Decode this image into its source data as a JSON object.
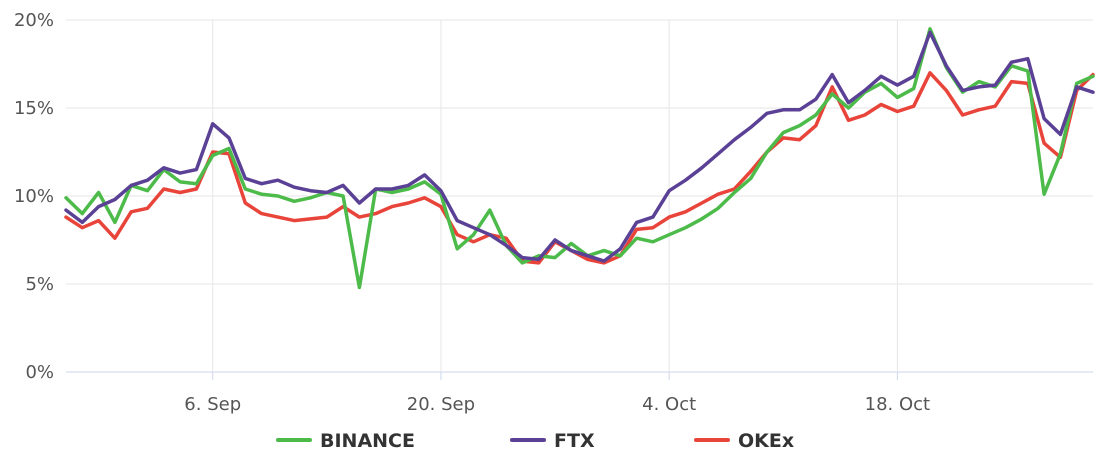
{
  "chart_data": {
    "type": "line",
    "title": "",
    "xlabel": "",
    "ylabel": "",
    "x_range": [
      "2021-08-28",
      "2021-10-30"
    ],
    "ylim": [
      0,
      20
    ],
    "y_ticks": [
      0,
      5,
      10,
      15,
      20
    ],
    "y_tick_labels": [
      "0%",
      "5%",
      "10%",
      "15%",
      "20%"
    ],
    "x_ticks": [
      "2021-09-06",
      "2021-09-20",
      "2021-10-04",
      "2021-10-18"
    ],
    "x_tick_labels": [
      "6. Sep",
      "20. Sep",
      "4. Oct",
      "18. Oct"
    ],
    "grid": {
      "horizontal": true,
      "vertical": true
    },
    "legend_position": "bottom-center",
    "series": [
      {
        "name": "BINANCE",
        "color": "#4cbb4a",
        "points": [
          [
            "2021-08-28",
            9.9
          ],
          [
            "2021-08-29",
            9.0
          ],
          [
            "2021-08-30",
            10.2
          ],
          [
            "2021-08-31",
            8.5
          ],
          [
            "2021-09-01",
            10.6
          ],
          [
            "2021-09-02",
            10.3
          ],
          [
            "2021-09-03",
            11.5
          ],
          [
            "2021-09-04",
            10.8
          ],
          [
            "2021-09-05",
            10.7
          ],
          [
            "2021-09-06",
            12.3
          ],
          [
            "2021-09-07",
            12.7
          ],
          [
            "2021-09-08",
            10.4
          ],
          [
            "2021-09-09",
            10.1
          ],
          [
            "2021-09-10",
            10.0
          ],
          [
            "2021-09-11",
            9.7
          ],
          [
            "2021-09-12",
            9.9
          ],
          [
            "2021-09-13",
            10.2
          ],
          [
            "2021-09-14",
            10.0
          ],
          [
            "2021-09-15",
            4.8
          ],
          [
            "2021-09-16",
            10.4
          ],
          [
            "2021-09-17",
            10.2
          ],
          [
            "2021-09-18",
            10.4
          ],
          [
            "2021-09-19",
            10.8
          ],
          [
            "2021-09-20",
            10.1
          ],
          [
            "2021-09-21",
            7.0
          ],
          [
            "2021-09-22",
            7.8
          ],
          [
            "2021-09-23",
            9.2
          ],
          [
            "2021-09-24",
            7.2
          ],
          [
            "2021-09-25",
            6.2
          ],
          [
            "2021-09-26",
            6.6
          ],
          [
            "2021-09-27",
            6.5
          ],
          [
            "2021-09-28",
            7.3
          ],
          [
            "2021-09-29",
            6.6
          ],
          [
            "2021-09-30",
            6.9
          ],
          [
            "2021-10-01",
            6.6
          ],
          [
            "2021-10-02",
            7.6
          ],
          [
            "2021-10-03",
            7.4
          ],
          [
            "2021-10-04",
            7.8
          ],
          [
            "2021-10-05",
            8.2
          ],
          [
            "2021-10-06",
            8.7
          ],
          [
            "2021-10-07",
            9.3
          ],
          [
            "2021-10-08",
            10.2
          ],
          [
            "2021-10-09",
            11.0
          ],
          [
            "2021-10-10",
            12.5
          ],
          [
            "2021-10-11",
            13.6
          ],
          [
            "2021-10-12",
            14.0
          ],
          [
            "2021-10-13",
            14.6
          ],
          [
            "2021-10-14",
            15.8
          ],
          [
            "2021-10-15",
            15.0
          ],
          [
            "2021-10-16",
            15.9
          ],
          [
            "2021-10-17",
            16.4
          ],
          [
            "2021-10-18",
            15.6
          ],
          [
            "2021-10-19",
            16.1
          ],
          [
            "2021-10-20",
            19.5
          ],
          [
            "2021-10-21",
            17.3
          ],
          [
            "2021-10-22",
            15.9
          ],
          [
            "2021-10-23",
            16.5
          ],
          [
            "2021-10-24",
            16.2
          ],
          [
            "2021-10-25",
            17.4
          ],
          [
            "2021-10-26",
            17.1
          ],
          [
            "2021-10-27",
            10.1
          ],
          [
            "2021-10-28",
            12.4
          ],
          [
            "2021-10-29",
            16.4
          ],
          [
            "2021-10-30",
            16.8
          ]
        ]
      },
      {
        "name": "FTX",
        "color": "#5b4196",
        "points": [
          [
            "2021-08-28",
            9.2
          ],
          [
            "2021-08-29",
            8.5
          ],
          [
            "2021-08-30",
            9.4
          ],
          [
            "2021-08-31",
            9.8
          ],
          [
            "2021-09-01",
            10.6
          ],
          [
            "2021-09-02",
            10.9
          ],
          [
            "2021-09-03",
            11.6
          ],
          [
            "2021-09-04",
            11.3
          ],
          [
            "2021-09-05",
            11.5
          ],
          [
            "2021-09-06",
            14.1
          ],
          [
            "2021-09-07",
            13.3
          ],
          [
            "2021-09-08",
            11.0
          ],
          [
            "2021-09-09",
            10.7
          ],
          [
            "2021-09-10",
            10.9
          ],
          [
            "2021-09-11",
            10.5
          ],
          [
            "2021-09-12",
            10.3
          ],
          [
            "2021-09-13",
            10.2
          ],
          [
            "2021-09-14",
            10.6
          ],
          [
            "2021-09-15",
            9.6
          ],
          [
            "2021-09-16",
            10.4
          ],
          [
            "2021-09-17",
            10.4
          ],
          [
            "2021-09-18",
            10.6
          ],
          [
            "2021-09-19",
            11.2
          ],
          [
            "2021-09-20",
            10.3
          ],
          [
            "2021-09-21",
            8.6
          ],
          [
            "2021-09-22",
            8.2
          ],
          [
            "2021-09-23",
            7.8
          ],
          [
            "2021-09-24",
            7.2
          ],
          [
            "2021-09-25",
            6.5
          ],
          [
            "2021-09-26",
            6.4
          ],
          [
            "2021-09-27",
            7.5
          ],
          [
            "2021-09-28",
            6.9
          ],
          [
            "2021-09-29",
            6.6
          ],
          [
            "2021-09-30",
            6.3
          ],
          [
            "2021-10-01",
            7.0
          ],
          [
            "2021-10-02",
            8.5
          ],
          [
            "2021-10-03",
            8.8
          ],
          [
            "2021-10-04",
            10.3
          ],
          [
            "2021-10-05",
            10.9
          ],
          [
            "2021-10-06",
            11.6
          ],
          [
            "2021-10-07",
            12.4
          ],
          [
            "2021-10-08",
            13.2
          ],
          [
            "2021-10-09",
            13.9
          ],
          [
            "2021-10-10",
            14.7
          ],
          [
            "2021-10-11",
            14.9
          ],
          [
            "2021-10-12",
            14.9
          ],
          [
            "2021-10-13",
            15.5
          ],
          [
            "2021-10-14",
            16.9
          ],
          [
            "2021-10-15",
            15.3
          ],
          [
            "2021-10-16",
            16.0
          ],
          [
            "2021-10-17",
            16.8
          ],
          [
            "2021-10-18",
            16.3
          ],
          [
            "2021-10-19",
            16.8
          ],
          [
            "2021-10-20",
            19.3
          ],
          [
            "2021-10-21",
            17.4
          ],
          [
            "2021-10-22",
            16.0
          ],
          [
            "2021-10-23",
            16.2
          ],
          [
            "2021-10-24",
            16.3
          ],
          [
            "2021-10-25",
            17.6
          ],
          [
            "2021-10-26",
            17.8
          ],
          [
            "2021-10-27",
            14.4
          ],
          [
            "2021-10-28",
            13.5
          ],
          [
            "2021-10-29",
            16.2
          ],
          [
            "2021-10-30",
            15.9
          ]
        ]
      },
      {
        "name": "OKEx",
        "color": "#e8443a",
        "points": [
          [
            "2021-08-28",
            8.8
          ],
          [
            "2021-08-29",
            8.2
          ],
          [
            "2021-08-30",
            8.6
          ],
          [
            "2021-08-31",
            7.6
          ],
          [
            "2021-09-01",
            9.1
          ],
          [
            "2021-09-02",
            9.3
          ],
          [
            "2021-09-03",
            10.4
          ],
          [
            "2021-09-04",
            10.2
          ],
          [
            "2021-09-05",
            10.4
          ],
          [
            "2021-09-06",
            12.5
          ],
          [
            "2021-09-07",
            12.4
          ],
          [
            "2021-09-08",
            9.6
          ],
          [
            "2021-09-09",
            9.0
          ],
          [
            "2021-09-10",
            8.8
          ],
          [
            "2021-09-11",
            8.6
          ],
          [
            "2021-09-12",
            8.7
          ],
          [
            "2021-09-13",
            8.8
          ],
          [
            "2021-09-14",
            9.4
          ],
          [
            "2021-09-15",
            8.8
          ],
          [
            "2021-09-16",
            9.0
          ],
          [
            "2021-09-17",
            9.4
          ],
          [
            "2021-09-18",
            9.6
          ],
          [
            "2021-09-19",
            9.9
          ],
          [
            "2021-09-20",
            9.4
          ],
          [
            "2021-09-21",
            7.8
          ],
          [
            "2021-09-22",
            7.4
          ],
          [
            "2021-09-23",
            7.8
          ],
          [
            "2021-09-24",
            7.6
          ],
          [
            "2021-09-25",
            6.3
          ],
          [
            "2021-09-26",
            6.2
          ],
          [
            "2021-09-27",
            7.4
          ],
          [
            "2021-09-28",
            6.9
          ],
          [
            "2021-09-29",
            6.4
          ],
          [
            "2021-09-30",
            6.2
          ],
          [
            "2021-10-01",
            6.6
          ],
          [
            "2021-10-02",
            8.1
          ],
          [
            "2021-10-03",
            8.2
          ],
          [
            "2021-10-04",
            8.8
          ],
          [
            "2021-10-05",
            9.1
          ],
          [
            "2021-10-06",
            9.6
          ],
          [
            "2021-10-07",
            10.1
          ],
          [
            "2021-10-08",
            10.4
          ],
          [
            "2021-10-09",
            11.4
          ],
          [
            "2021-10-10",
            12.5
          ],
          [
            "2021-10-11",
            13.3
          ],
          [
            "2021-10-12",
            13.2
          ],
          [
            "2021-10-13",
            14.0
          ],
          [
            "2021-10-14",
            16.2
          ],
          [
            "2021-10-15",
            14.3
          ],
          [
            "2021-10-16",
            14.6
          ],
          [
            "2021-10-17",
            15.2
          ],
          [
            "2021-10-18",
            14.8
          ],
          [
            "2021-10-19",
            15.1
          ],
          [
            "2021-10-20",
            17.0
          ],
          [
            "2021-10-21",
            16.0
          ],
          [
            "2021-10-22",
            14.6
          ],
          [
            "2021-10-23",
            14.9
          ],
          [
            "2021-10-24",
            15.1
          ],
          [
            "2021-10-25",
            16.5
          ],
          [
            "2021-10-26",
            16.4
          ],
          [
            "2021-10-27",
            13.0
          ],
          [
            "2021-10-28",
            12.2
          ],
          [
            "2021-10-29",
            16.0
          ],
          [
            "2021-10-30",
            16.9
          ]
        ]
      }
    ]
  }
}
